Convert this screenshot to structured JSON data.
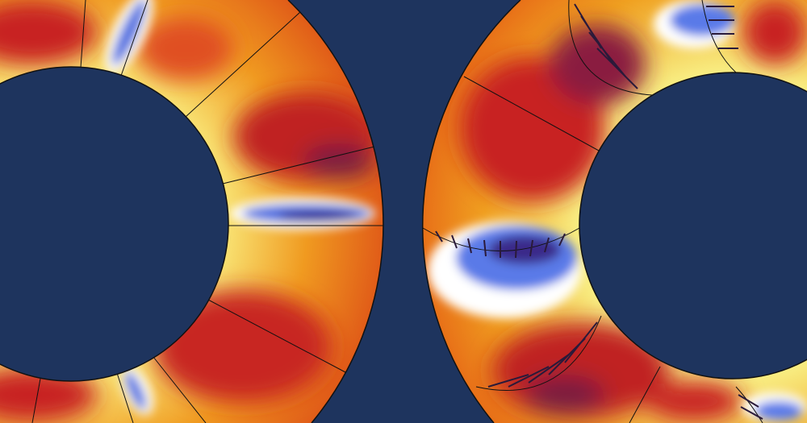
{
  "colors": {
    "background": "#1e345e",
    "hot_dark": "#7a1a3a",
    "hot_red": "#c8201e",
    "hot_orange": "#ee7a1a",
    "warm_yellow": "#f6f08a",
    "white": "#ffffff",
    "cold_blue": "#4a6ae0",
    "cold_dark": "#3a2a8a",
    "mesh_line": "#111111"
  }
}
